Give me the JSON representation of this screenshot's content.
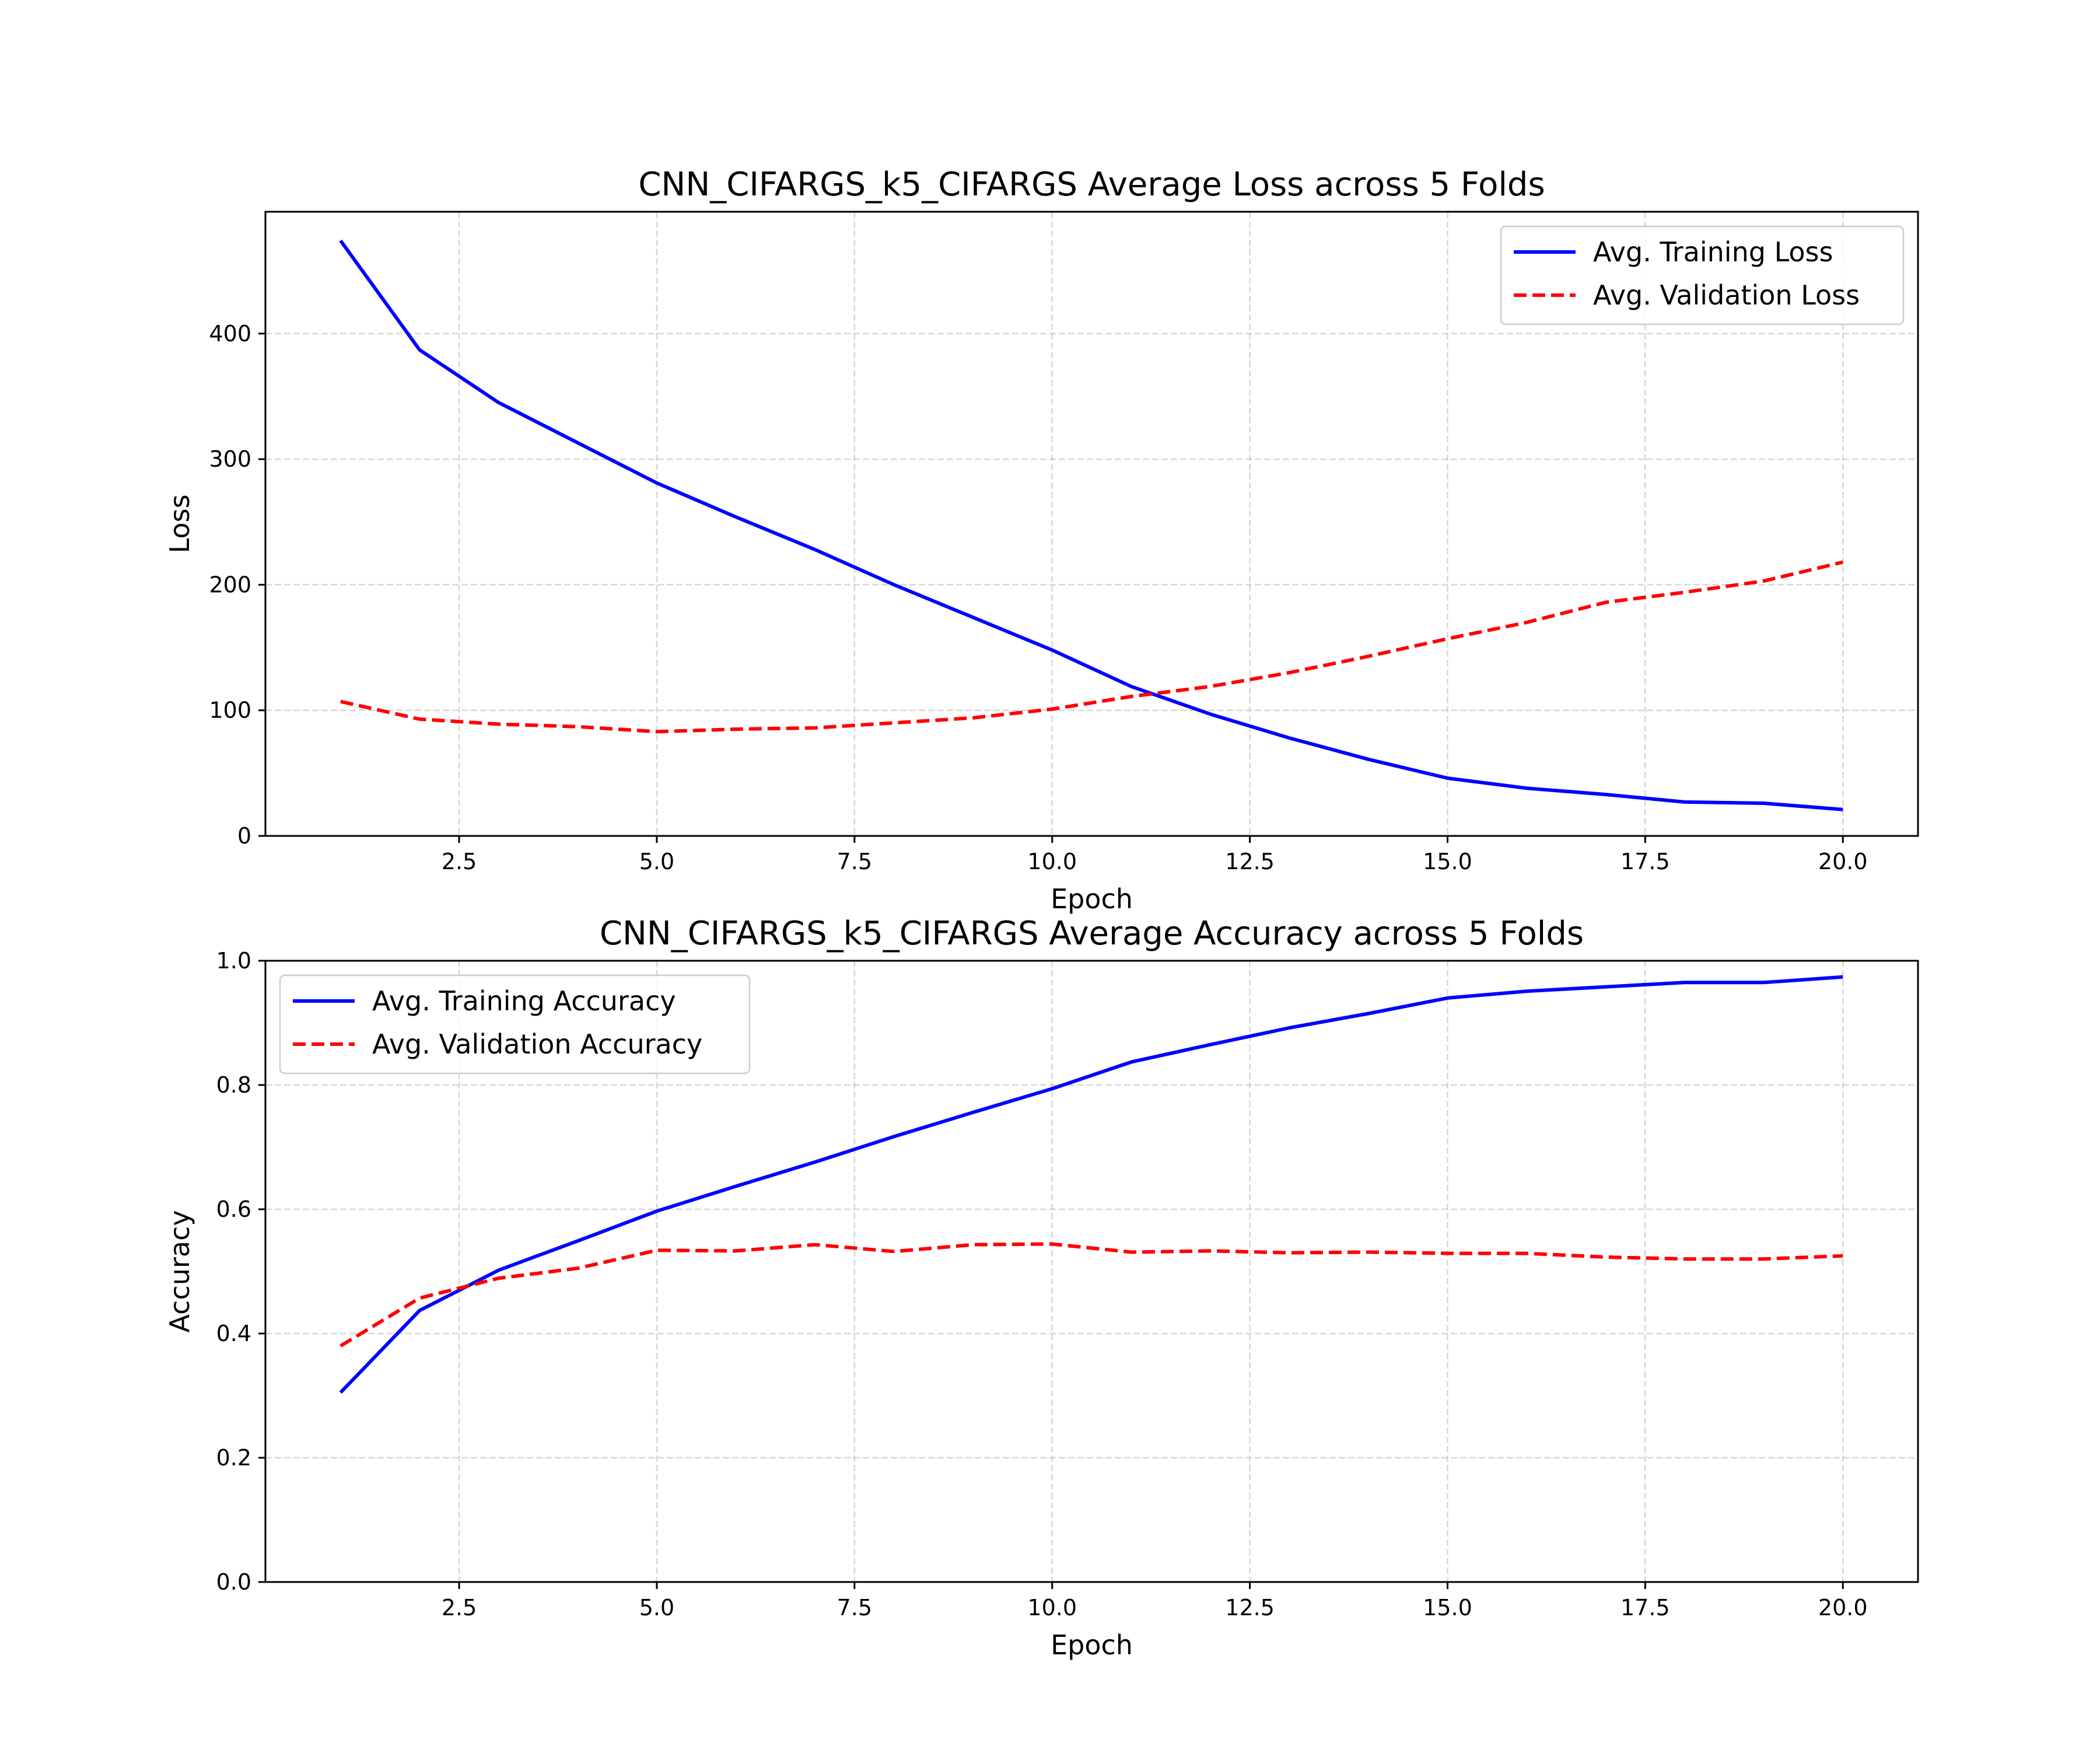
{
  "chart_data": [
    {
      "type": "line",
      "title": "CNN_CIFARGS_k5_CIFARGS Average Loss across 5 Folds",
      "xlabel": "Epoch",
      "ylabel": "Loss",
      "xlim": [
        0.05,
        20.95
      ],
      "ylim": [
        0,
        497
      ],
      "x_ticks": [
        2.5,
        5.0,
        7.5,
        10.0,
        12.5,
        15.0,
        17.5,
        20.0
      ],
      "x_tick_labels": [
        "2.5",
        "5.0",
        "7.5",
        "10.0",
        "12.5",
        "15.0",
        "17.5",
        "20.0"
      ],
      "y_ticks": [
        0,
        100,
        200,
        300,
        400
      ],
      "y_tick_labels": [
        "0",
        "100",
        "200",
        "300",
        "400"
      ],
      "grid": true,
      "legend_position": "top-right",
      "x": [
        1,
        2,
        3,
        4,
        5,
        6,
        7,
        8,
        9,
        10,
        11,
        12,
        13,
        14,
        15,
        16,
        17,
        18,
        19,
        20
      ],
      "series": [
        {
          "name": "Avg. Training Loss",
          "color": "#0000ff",
          "style": "solid",
          "values": [
            474,
            387,
            345,
            313,
            281,
            254,
            228,
            200,
            174,
            148,
            119,
            97,
            78,
            61,
            46,
            38,
            33,
            27,
            26,
            21
          ]
        },
        {
          "name": "Avg. Validation Loss",
          "color": "#ff0000",
          "style": "dashed",
          "values": [
            107,
            93,
            89,
            87,
            83,
            85,
            86,
            90,
            94,
            101,
            111,
            119,
            130,
            143,
            157,
            170,
            186,
            194,
            203,
            218
          ]
        }
      ]
    },
    {
      "type": "line",
      "title": "CNN_CIFARGS_k5_CIFARGS Average Accuracy across 5 Folds",
      "xlabel": "Epoch",
      "ylabel": "Accuracy",
      "xlim": [
        0.05,
        20.95
      ],
      "ylim": [
        0.0,
        1.0
      ],
      "x_ticks": [
        2.5,
        5.0,
        7.5,
        10.0,
        12.5,
        15.0,
        17.5,
        20.0
      ],
      "x_tick_labels": [
        "2.5",
        "5.0",
        "7.5",
        "10.0",
        "12.5",
        "15.0",
        "17.5",
        "20.0"
      ],
      "y_ticks": [
        0.0,
        0.2,
        0.4,
        0.6,
        0.8,
        1.0
      ],
      "y_tick_labels": [
        "0.0",
        "0.2",
        "0.4",
        "0.6",
        "0.8",
        "1.0"
      ],
      "grid": true,
      "legend_position": "top-left",
      "x": [
        1,
        2,
        3,
        4,
        5,
        6,
        7,
        8,
        9,
        10,
        11,
        12,
        13,
        14,
        15,
        16,
        17,
        18,
        19,
        20
      ],
      "series": [
        {
          "name": "Avg. Training Accuracy",
          "color": "#0000ff",
          "style": "solid",
          "values": [
            0.305,
            0.437,
            0.502,
            0.549,
            0.597,
            0.637,
            0.676,
            0.717,
            0.756,
            0.794,
            0.837,
            0.865,
            0.892,
            0.915,
            0.94,
            0.951,
            0.958,
            0.965,
            0.965,
            0.974
          ]
        },
        {
          "name": "Avg. Validation Accuracy",
          "color": "#ff0000",
          "style": "dashed",
          "values": [
            0.38,
            0.457,
            0.489,
            0.505,
            0.534,
            0.533,
            0.543,
            0.532,
            0.543,
            0.544,
            0.531,
            0.533,
            0.53,
            0.531,
            0.529,
            0.529,
            0.523,
            0.52,
            0.52,
            0.525
          ]
        }
      ]
    }
  ]
}
